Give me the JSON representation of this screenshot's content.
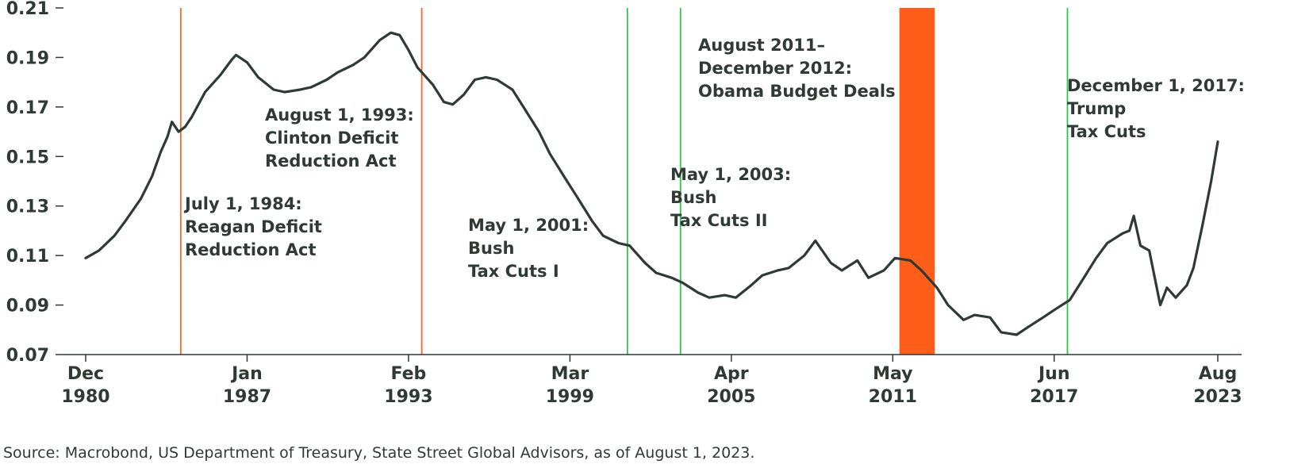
{
  "chart_data": {
    "type": "line",
    "title": "",
    "xlabel": "",
    "ylabel": "",
    "ylim": [
      0.07,
      0.21
    ],
    "yticks": [
      "0.21",
      "0.19",
      "0.17",
      "0.15",
      "0.13",
      "0.11",
      "0.09",
      "0.07"
    ],
    "ytick_values": [
      0.21,
      0.19,
      0.17,
      0.15,
      0.13,
      0.11,
      0.09,
      0.07
    ],
    "xticks": [
      {
        "date": "1980-12",
        "month": "Dec",
        "year": "1980"
      },
      {
        "date": "1987-01",
        "month": "Jan",
        "year": "1987"
      },
      {
        "date": "1993-02",
        "month": "Feb",
        "year": "1993"
      },
      {
        "date": "1999-03",
        "month": "Mar",
        "year": "1999"
      },
      {
        "date": "2005-04",
        "month": "Apr",
        "year": "2005"
      },
      {
        "date": "2011-05",
        "month": "May",
        "year": "2011"
      },
      {
        "date": "2017-06",
        "month": "Jun",
        "year": "2017"
      },
      {
        "date": "2023-08",
        "month": "Aug",
        "year": "2023"
      }
    ],
    "grid": false,
    "colors": {
      "line": "#2f3a35",
      "reagan_clinton": "#f26a2e",
      "bush_trump": "#33c24d",
      "shade": "#ff5e1a"
    },
    "series": [
      {
        "points": [
          [
            "1980-12",
            0.109
          ],
          [
            "1981-06",
            0.112
          ],
          [
            "1982-01",
            0.118
          ],
          [
            "1982-06",
            0.124
          ],
          [
            "1983-01",
            0.133
          ],
          [
            "1983-06",
            0.142
          ],
          [
            "1983-10",
            0.152
          ],
          [
            "1984-01",
            0.158
          ],
          [
            "1984-03",
            0.164
          ],
          [
            "1984-06",
            0.16
          ],
          [
            "1984-09",
            0.162
          ],
          [
            "1984-12",
            0.166
          ],
          [
            "1985-06",
            0.176
          ],
          [
            "1986-01",
            0.183
          ],
          [
            "1986-06",
            0.189
          ],
          [
            "1986-08",
            0.191
          ],
          [
            "1987-01",
            0.188
          ],
          [
            "1987-06",
            0.182
          ],
          [
            "1988-01",
            0.177
          ],
          [
            "1988-06",
            0.176
          ],
          [
            "1989-01",
            0.177
          ],
          [
            "1989-06",
            0.178
          ],
          [
            "1990-01",
            0.181
          ],
          [
            "1990-06",
            0.184
          ],
          [
            "1991-01",
            0.187
          ],
          [
            "1991-06",
            0.19
          ],
          [
            "1992-01",
            0.197
          ],
          [
            "1992-06",
            0.2
          ],
          [
            "1992-10",
            0.199
          ],
          [
            "1993-02",
            0.193
          ],
          [
            "1993-06",
            0.186
          ],
          [
            "1994-01",
            0.179
          ],
          [
            "1994-06",
            0.172
          ],
          [
            "1994-10",
            0.171
          ],
          [
            "1995-03",
            0.175
          ],
          [
            "1995-08",
            0.181
          ],
          [
            "1996-01",
            0.182
          ],
          [
            "1996-06",
            0.181
          ],
          [
            "1997-01",
            0.177
          ],
          [
            "1997-06",
            0.17
          ],
          [
            "1998-01",
            0.16
          ],
          [
            "1998-06",
            0.151
          ],
          [
            "1999-01",
            0.141
          ],
          [
            "1999-06",
            0.134
          ],
          [
            "2000-01",
            0.124
          ],
          [
            "2000-06",
            0.118
          ],
          [
            "2001-01",
            0.115
          ],
          [
            "2001-06",
            0.114
          ],
          [
            "2002-01",
            0.107
          ],
          [
            "2002-06",
            0.103
          ],
          [
            "2003-01",
            0.101
          ],
          [
            "2003-06",
            0.099
          ],
          [
            "2004-01",
            0.095
          ],
          [
            "2004-06",
            0.093
          ],
          [
            "2005-01",
            0.094
          ],
          [
            "2005-06",
            0.093
          ],
          [
            "2006-01",
            0.098
          ],
          [
            "2006-06",
            0.102
          ],
          [
            "2007-01",
            0.104
          ],
          [
            "2007-06",
            0.105
          ],
          [
            "2008-01",
            0.11
          ],
          [
            "2008-06",
            0.116
          ],
          [
            "2009-01",
            0.107
          ],
          [
            "2009-06",
            0.104
          ],
          [
            "2010-01",
            0.108
          ],
          [
            "2010-06",
            0.101
          ],
          [
            "2011-01",
            0.104
          ],
          [
            "2011-06",
            0.109
          ],
          [
            "2012-01",
            0.108
          ],
          [
            "2012-06",
            0.104
          ],
          [
            "2013-01",
            0.097
          ],
          [
            "2013-06",
            0.09
          ],
          [
            "2014-01",
            0.084
          ],
          [
            "2014-06",
            0.086
          ],
          [
            "2015-01",
            0.085
          ],
          [
            "2015-06",
            0.079
          ],
          [
            "2016-01",
            0.078
          ],
          [
            "2016-06",
            0.081
          ],
          [
            "2017-01",
            0.085
          ],
          [
            "2017-06",
            0.088
          ],
          [
            "2018-01",
            0.092
          ],
          [
            "2018-06",
            0.099
          ],
          [
            "2019-01",
            0.109
          ],
          [
            "2019-06",
            0.115
          ],
          [
            "2020-01",
            0.119
          ],
          [
            "2020-04",
            0.12
          ],
          [
            "2020-06",
            0.126
          ],
          [
            "2020-09",
            0.114
          ],
          [
            "2021-01",
            0.112
          ],
          [
            "2021-06",
            0.09
          ],
          [
            "2021-09",
            0.097
          ],
          [
            "2022-01",
            0.093
          ],
          [
            "2022-06",
            0.098
          ],
          [
            "2022-09",
            0.105
          ],
          [
            "2023-01",
            0.122
          ],
          [
            "2023-05",
            0.14
          ],
          [
            "2023-08",
            0.156
          ]
        ]
      }
    ],
    "events": [
      {
        "date": "1984-07-01",
        "color": "reagan_clinton",
        "lines": [
          "July 1, 1984:",
          "Reagan Deficit",
          "Reduction Act"
        ]
      },
      {
        "date": "1993-08-01",
        "color": "reagan_clinton",
        "lines": [
          "August 1, 1993:",
          "Clinton Deficit",
          "Reduction Act"
        ]
      },
      {
        "date": "2001-05-01",
        "color": "bush_trump",
        "lines": [
          "May 1, 2001:",
          "Bush",
          "Tax Cuts I"
        ]
      },
      {
        "date": "2003-05-01",
        "color": "bush_trump",
        "lines": [
          "May 1, 2003:",
          "Bush",
          "Tax Cuts II"
        ]
      },
      {
        "date": "2017-12-01",
        "color": "bush_trump",
        "lines": [
          "December 1, 2017:",
          "Trump",
          "Tax Cuts"
        ]
      }
    ],
    "shaded_periods": [
      {
        "start": "2011-08",
        "end": "2012-12",
        "lines": [
          "August 2011–",
          "December 2012:",
          "Obama Budget Deals"
        ]
      }
    ]
  },
  "source": "Source: Macrobond, US Department of Treasury, State Street Global Advisors, as of August 1, 2023."
}
